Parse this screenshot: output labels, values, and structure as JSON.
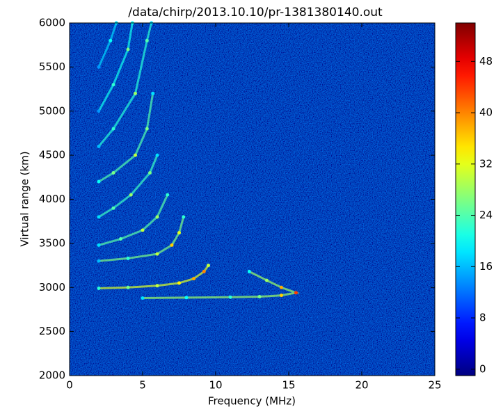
{
  "chart_data": {
    "type": "heatmap",
    "title": "/data/chirp/2013.10.10/pr-1381380140.out",
    "x_label": "Frequency (MHz)",
    "y_label": "Virtual range (km)",
    "xlim": [
      0,
      25
    ],
    "xticks": [
      0,
      5,
      10,
      15,
      20,
      25
    ],
    "ylim": [
      2000,
      6000
    ],
    "yticks": [
      2000,
      2500,
      3000,
      3500,
      4000,
      4500,
      5000,
      5500,
      6000
    ],
    "clim": [
      -1,
      54
    ],
    "cticks": [
      0,
      8,
      16,
      24,
      32,
      40,
      48
    ],
    "colormap": "jet",
    "series": [
      {
        "x": [
          2,
          4,
          6,
          7.5,
          8.5,
          9.2,
          9.5
        ],
        "y": [
          2990,
          3000,
          3020,
          3050,
          3100,
          3180,
          3250
        ],
        "z": [
          22,
          26,
          30,
          34,
          38,
          40,
          30
        ]
      },
      {
        "x": [
          5,
          8,
          11,
          13,
          14.5,
          15.5,
          14.5,
          13.5,
          12.3
        ],
        "y": [
          2880,
          2885,
          2890,
          2895,
          2910,
          2940,
          3000,
          3080,
          3180
        ],
        "z": [
          18,
          20,
          22,
          26,
          36,
          44,
          38,
          28,
          20
        ]
      },
      {
        "x": [
          2,
          4,
          6,
          7,
          7.5,
          7.8
        ],
        "y": [
          3300,
          3330,
          3380,
          3480,
          3620,
          3800
        ],
        "z": [
          16,
          22,
          30,
          36,
          32,
          22
        ]
      },
      {
        "x": [
          2,
          3.5,
          5,
          6,
          6.7
        ],
        "y": [
          3480,
          3550,
          3650,
          3800,
          4050
        ],
        "z": [
          18,
          24,
          30,
          28,
          22
        ]
      },
      {
        "x": [
          2,
          3,
          4.2,
          5.5,
          6
        ],
        "y": [
          3800,
          3900,
          4050,
          4300,
          4500
        ],
        "z": [
          18,
          24,
          28,
          26,
          18
        ]
      },
      {
        "x": [
          2,
          3,
          4.5,
          5.3,
          5.7
        ],
        "y": [
          4200,
          4300,
          4500,
          4800,
          5200
        ],
        "z": [
          20,
          26,
          30,
          26,
          18
        ]
      },
      {
        "x": [
          2,
          3,
          4.5,
          5.3,
          5.6
        ],
        "y": [
          4600,
          4800,
          5200,
          5800,
          6000
        ],
        "z": [
          16,
          22,
          28,
          24,
          18
        ]
      },
      {
        "x": [
          2,
          3,
          4,
          4.3
        ],
        "y": [
          5000,
          5300,
          5700,
          6000
        ],
        "z": [
          14,
          22,
          26,
          20
        ]
      },
      {
        "x": [
          2,
          2.8,
          3.2
        ],
        "y": [
          5500,
          5800,
          6000
        ],
        "z": [
          14,
          20,
          18
        ]
      }
    ]
  }
}
